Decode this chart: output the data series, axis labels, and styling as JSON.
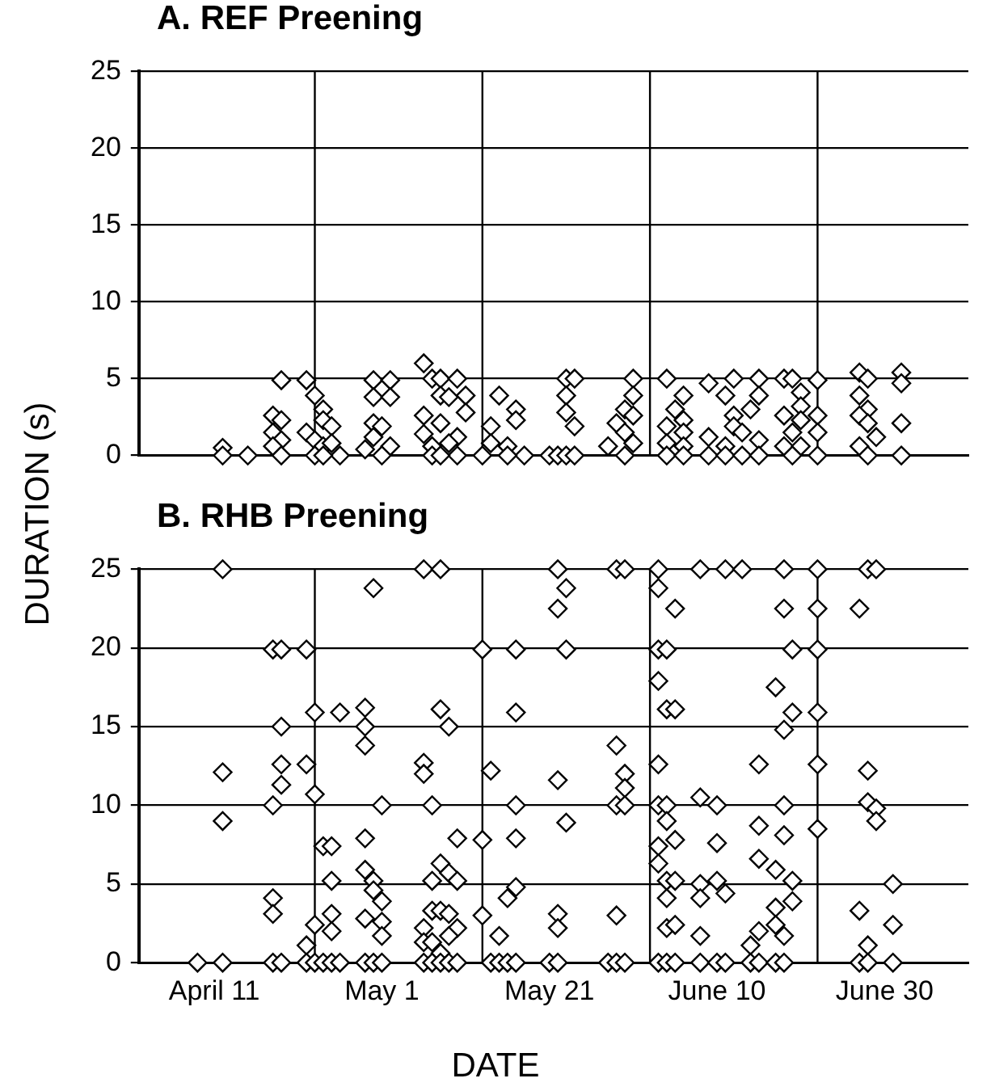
{
  "chart_data": [
    {
      "type": "scatter",
      "title": "A. REF Preening",
      "ylabel": "DURATION (s)",
      "marker": "diamond",
      "grid": "y",
      "tick_labels": "y",
      "legend": false,
      "xlim": [
        "--04-02",
        "--07-10"
      ],
      "xticks": [
        {
          "value": "--04-11",
          "label": "April 11"
        },
        {
          "value": "--05-01",
          "label": "May 1"
        },
        {
          "value": "--05-21",
          "label": "May 21"
        },
        {
          "value": "--06-10",
          "label": "June 10"
        },
        {
          "value": "--06-30",
          "label": "June 30"
        }
      ],
      "ylim": [
        0,
        25
      ],
      "yticks": [
        0,
        5,
        10,
        15,
        20,
        25
      ],
      "ref_lines": [
        {
          "axis": "x",
          "value": "--04-23",
          "color": "#000000"
        },
        {
          "axis": "x",
          "value": "--05-13",
          "color": "#000000"
        },
        {
          "axis": "x",
          "value": "--06-02",
          "color": "#000000"
        },
        {
          "axis": "x",
          "value": "--06-22",
          "color": "#000000"
        }
      ],
      "series": [
        {
          "color": "#000000",
          "x": [
            "--04-12",
            "--04-12",
            "--04-15",
            "--04-19",
            "--04-18",
            "--04-19",
            "--04-18",
            "--04-19",
            "--04-18",
            "--04-19",
            "--04-22",
            "--04-23",
            "--04-24",
            "--04-24",
            "--04-25",
            "--04-22",
            "--04-23",
            "--04-24",
            "--04-25",
            "--04-26",
            "--04-23",
            "--04-24",
            "--04-30",
            "--05-02",
            "--04-30",
            "--05-02",
            "--04-30",
            "--05-01",
            "--04-30",
            "--05-02",
            "--04-29",
            "--05-01",
            "--05-06",
            "--05-07",
            "--05-08",
            "--05-10",
            "--05-08",
            "--05-09",
            "--05-11",
            "--05-06",
            "--05-08",
            "--05-11",
            "--05-10",
            "--05-06",
            "--05-07",
            "--05-09",
            "--05-10",
            "--05-07",
            "--05-08",
            "--05-14",
            "--05-15",
            "--05-17",
            "--05-17",
            "--05-14",
            "--05-16",
            "--05-18",
            "--05-16",
            "--05-13",
            "--05-21",
            "--05-23",
            "--05-24",
            "--05-23",
            "--05-23",
            "--05-24",
            "--05-22",
            "--05-23",
            "--05-24",
            "--05-31",
            "--05-31",
            "--05-30",
            "--05-31",
            "--05-29",
            "--05-30",
            "--05-31",
            "--05-28",
            "--05-30",
            "--06-04",
            "--06-06",
            "--06-05",
            "--06-06",
            "--06-04",
            "--06-06",
            "--06-04",
            "--06-06",
            "--06-04",
            "--06-06",
            "--06-09",
            "--06-12",
            "--06-15",
            "--06-11",
            "--06-12",
            "--06-14",
            "--06-15",
            "--06-09",
            "--06-12",
            "--06-13",
            "--06-15",
            "--06-11",
            "--06-09",
            "--06-11",
            "--06-13",
            "--06-15",
            "--06-18",
            "--06-19",
            "--06-22",
            "--06-20",
            "--06-20",
            "--06-20",
            "--06-22",
            "--06-18",
            "--06-19",
            "--06-22",
            "--06-18",
            "--06-20",
            "--06-22",
            "--06-19",
            "--06-27",
            "--06-28",
            "--06-27",
            "--06-28",
            "--06-27",
            "--06-28",
            "--06-29",
            "--06-27",
            "--06-28",
            "--07-02",
            "--07-02",
            "--07-02",
            "--07-02"
          ],
          "values": [
            0.5,
            0,
            0,
            4.9,
            2.6,
            2.3,
            1.5,
            1.0,
            0.6,
            0,
            4.9,
            3.9,
            3.0,
            2.3,
            1.9,
            1.5,
            1.0,
            0.6,
            0.8,
            0,
            0,
            0,
            4.9,
            4.9,
            3.8,
            3.8,
            2.1,
            1.9,
            1.2,
            0.6,
            0.4,
            0,
            6.0,
            5,
            5,
            5,
            3.9,
            3.8,
            3.9,
            2.6,
            2.1,
            2.8,
            1.2,
            1.4,
            0.6,
            0.8,
            0,
            0,
            0,
            1.9,
            3.9,
            3.0,
            2.3,
            0.8,
            0.6,
            0,
            0,
            0,
            0,
            5,
            5,
            3.9,
            2.8,
            1.9,
            0,
            0,
            0,
            5,
            3.9,
            3,
            2.6,
            2.1,
            1.5,
            0.8,
            0.6,
            0,
            5,
            3.9,
            3,
            2.3,
            1.9,
            1.5,
            0.8,
            0.6,
            0,
            0,
            4.7,
            5,
            5,
            3.9,
            2.6,
            3,
            3.9,
            1.2,
            1.9,
            1.5,
            1.0,
            0.6,
            0,
            0,
            0,
            0,
            5,
            5,
            4.9,
            4.1,
            3.2,
            2.3,
            2.6,
            2.6,
            1.5,
            1.5,
            0.6,
            0.6,
            0,
            0,
            5.4,
            5,
            3.9,
            3,
            2.6,
            2.1,
            1.2,
            0.6,
            0,
            5.4,
            4.7,
            2.1,
            0
          ]
        }
      ]
    },
    {
      "type": "scatter",
      "title": "B. RHB Preening",
      "xlabel": "DATE",
      "marker": "diamond",
      "grid": "y",
      "legend": false,
      "xlim": [
        "--04-02",
        "--07-10"
      ],
      "xticks": [
        {
          "value": "--04-11",
          "label": "April 11"
        },
        {
          "value": "--05-01",
          "label": "May 1"
        },
        {
          "value": "--05-21",
          "label": "May 21"
        },
        {
          "value": "--06-10",
          "label": "June 10"
        },
        {
          "value": "--06-30",
          "label": "June 30"
        }
      ],
      "ylim": [
        0,
        25
      ],
      "yticks": [
        0,
        5,
        10,
        15,
        20,
        25
      ],
      "ref_lines": [
        {
          "axis": "x",
          "value": "--04-23",
          "color": "#000000"
        },
        {
          "axis": "x",
          "value": "--05-13",
          "color": "#000000"
        },
        {
          "axis": "x",
          "value": "--06-02",
          "color": "#000000"
        },
        {
          "axis": "x",
          "value": "--06-22",
          "color": "#000000"
        }
      ],
      "series": [
        {
          "color": "#000000",
          "x": [
            "--04-09",
            "--04-12",
            "--04-12",
            "--04-12",
            "--04-12",
            "--04-18",
            "--04-19",
            "--04-19",
            "--04-19",
            "--04-19",
            "--04-18",
            "--04-18",
            "--04-18",
            "--04-18",
            "--04-19",
            "--04-22",
            "--04-22",
            "--04-23",
            "--04-22",
            "--04-23",
            "--04-22",
            "--04-23",
            "--04-23",
            "--04-26",
            "--04-24",
            "--04-25",
            "--04-25",
            "--04-25",
            "--04-25",
            "--04-24",
            "--04-25",
            "--04-26",
            "--04-29",
            "--04-29",
            "--04-29",
            "--05-01",
            "--04-29",
            "--04-29",
            "--04-30",
            "--04-30",
            "--05-01",
            "--04-29",
            "--05-01",
            "--05-01",
            "--04-29",
            "--04-30",
            "--05-01",
            "--04-30",
            "--05-06",
            "--05-08",
            "--05-08",
            "--05-09",
            "--05-06",
            "--05-06",
            "--05-07",
            "--05-10",
            "--05-08",
            "--05-09",
            "--05-07",
            "--05-10",
            "--05-07",
            "--05-08",
            "--05-09",
            "--05-06",
            "--05-10",
            "--05-06",
            "--05-07",
            "--05-09",
            "--05-08",
            "--05-06",
            "--05-07",
            "--05-08",
            "--05-09",
            "--05-10",
            "--05-13",
            "--05-17",
            "--05-17",
            "--05-14",
            "--05-17",
            "--05-17",
            "--05-13",
            "--05-17",
            "--05-16",
            "--05-13",
            "--05-15",
            "--05-14",
            "--05-15",
            "--05-16",
            "--05-17",
            "--05-22",
            "--05-23",
            "--05-22",
            "--05-23",
            "--05-22",
            "--05-23",
            "--05-22",
            "--05-22",
            "--05-21",
            "--05-22",
            "--05-29",
            "--05-30",
            "--05-29",
            "--05-30",
            "--05-30",
            "--05-29",
            "--05-30",
            "--05-29",
            "--05-28",
            "--05-29",
            "--05-30",
            "--06-03",
            "--06-03",
            "--06-05",
            "--06-03",
            "--06-04",
            "--06-03",
            "--06-04",
            "--06-05",
            "--06-03",
            "--06-03",
            "--06-04",
            "--06-04",
            "--06-03",
            "--06-05",
            "--06-03",
            "--06-04",
            "--06-05",
            "--06-04",
            "--06-04",
            "--06-05",
            "--06-03",
            "--06-04",
            "--06-05",
            "--06-08",
            "--06-11",
            "--06-13",
            "--06-08",
            "--06-10",
            "--06-10",
            "--06-08",
            "--06-08",
            "--06-10",
            "--06-11",
            "--06-08",
            "--06-08",
            "--06-10",
            "--06-11",
            "--06-15",
            "--06-15",
            "--06-15",
            "--06-14",
            "--06-15",
            "--06-14",
            "--06-15",
            "--06-18",
            "--06-18",
            "--06-17",
            "--06-19",
            "--06-19",
            "--06-18",
            "--06-18",
            "--06-18",
            "--06-17",
            "--06-19",
            "--06-19",
            "--06-17",
            "--06-17",
            "--06-18",
            "--06-17",
            "--06-18",
            "--06-22",
            "--06-22",
            "--06-22",
            "--06-22",
            "--06-22",
            "--06-22",
            "--06-28",
            "--06-29",
            "--06-27",
            "--06-28",
            "--06-28",
            "--06-29",
            "--06-29",
            "--06-27",
            "--06-28",
            "--06-27",
            "--06-28",
            "--07-01",
            "--07-01",
            "--07-01"
          ],
          "values": [
            0,
            25,
            12.1,
            9.0,
            0,
            19.9,
            19.9,
            15,
            12.6,
            11.3,
            10,
            4.1,
            3.1,
            0,
            0,
            19.9,
            12.6,
            10.7,
            1.1,
            2.4,
            0,
            0,
            15.9,
            15.9,
            7.4,
            7.4,
            5.2,
            3.1,
            2.0,
            0,
            0,
            0,
            16.2,
            15,
            13.8,
            10,
            7.9,
            5.9,
            5.2,
            4.6,
            3.9,
            2.8,
            2.6,
            1.7,
            0,
            0,
            0,
            23.8,
            25,
            25,
            16.1,
            15,
            12.7,
            12,
            10,
            7.9,
            6.3,
            5.7,
            5.2,
            5.2,
            3.3,
            3.3,
            3.1,
            2.2,
            2.2,
            1.3,
            1.3,
            1.7,
            0.6,
            0,
            0,
            0,
            0,
            0,
            19.9,
            19.9,
            15.9,
            12.2,
            10,
            7.9,
            7.8,
            4.8,
            4.1,
            3.0,
            1.7,
            0,
            0,
            0,
            0,
            25,
            23.8,
            22.5,
            19.9,
            11.6,
            8.9,
            3.1,
            2.2,
            0,
            0,
            25,
            25,
            13.8,
            12,
            11.1,
            10,
            10,
            3,
            0,
            0,
            0,
            25,
            23.8,
            22.5,
            19.9,
            19.9,
            17.9,
            16.1,
            16.1,
            12.6,
            10,
            10,
            9,
            7.4,
            7.8,
            6.3,
            5.2,
            5.2,
            4.1,
            2.2,
            2.4,
            0,
            0,
            0,
            25,
            25,
            25,
            10.5,
            10,
            7.6,
            5,
            4.1,
            5.2,
            4.4,
            1.7,
            0,
            0,
            0,
            12.6,
            8.7,
            6.6,
            1.1,
            2.0,
            0,
            0,
            25,
            22.5,
            17.5,
            19.9,
            15.9,
            14.8,
            10,
            8.1,
            5.9,
            5.2,
            3.9,
            3.5,
            2.4,
            1.7,
            0,
            0,
            25,
            22.5,
            19.9,
            15.9,
            12.6,
            8.5,
            25,
            25,
            22.5,
            12.2,
            10.2,
            9.8,
            9,
            3.3,
            1.1,
            0,
            0,
            5,
            2.4,
            0
          ]
        }
      ]
    }
  ]
}
